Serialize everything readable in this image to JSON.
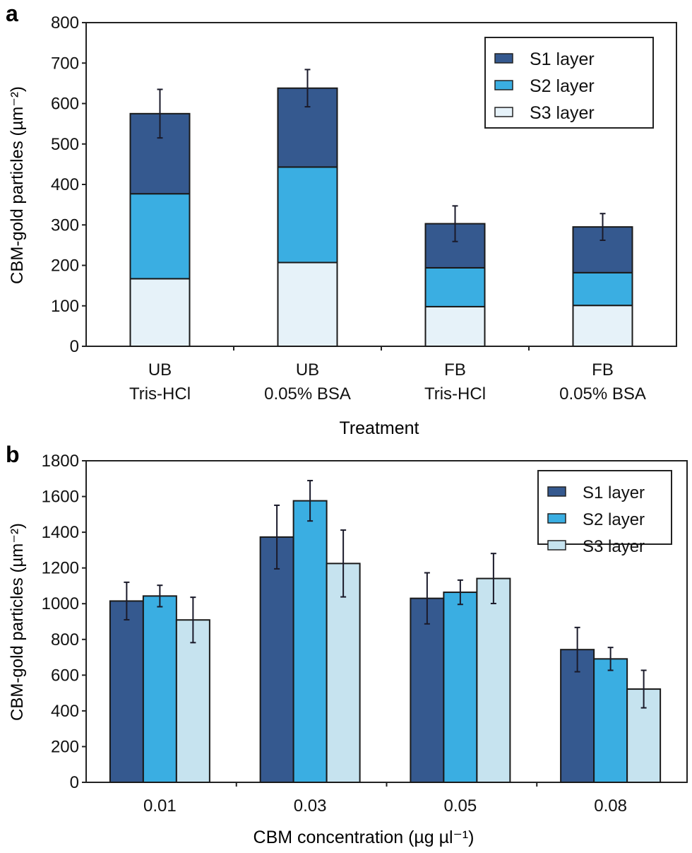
{
  "colors": {
    "S1": "#35598f",
    "S2": "#3aaee2",
    "S3a": "#e6f2f9",
    "S3b": "#c6e3ef"
  },
  "chart_data": [
    {
      "panel_label": "a",
      "type": "bar",
      "stacked": true,
      "ylabel": "CBM-gold particles (µm⁻²)",
      "xlabel": "Treatment",
      "ylim": [
        0,
        800
      ],
      "yticks": [
        "0",
        "100",
        "200",
        "300",
        "400",
        "500",
        "600",
        "700",
        "800"
      ],
      "categories": [
        [
          "UB",
          "Tris-HCl"
        ],
        [
          "UB",
          "0.05% BSA"
        ],
        [
          "FB",
          "Tris-HCl"
        ],
        [
          "FB",
          "0.05% BSA"
        ]
      ],
      "series": [
        {
          "name": "S3 layer",
          "values": [
            167,
            207,
            98,
            101
          ]
        },
        {
          "name": "S2 layer",
          "values": [
            210,
            236,
            96,
            81
          ]
        },
        {
          "name": "S1 layer",
          "values": [
            198,
            195,
            109,
            113
          ]
        }
      ],
      "total_error": [
        60,
        46,
        44,
        33
      ],
      "legend": [
        "S1 layer",
        "S2 layer",
        "S3 layer"
      ],
      "legend_position": "top-right",
      "grid": false
    },
    {
      "panel_label": "b",
      "type": "bar",
      "stacked": false,
      "ylabel": "CBM-gold particles (µm⁻²)",
      "xlabel": "CBM concentration (µg µl⁻¹)",
      "ylim": [
        0,
        1800
      ],
      "yticks": [
        "0",
        "200",
        "400",
        "600",
        "800",
        "1000",
        "1200",
        "1400",
        "1600",
        "1800"
      ],
      "categories": [
        "0.01",
        "0.03",
        "0.05",
        "0.08"
      ],
      "series": [
        {
          "name": "S1 layer",
          "values": [
            1015,
            1373,
            1030,
            743
          ],
          "error": [
            105,
            178,
            143,
            124
          ]
        },
        {
          "name": "S2 layer",
          "values": [
            1043,
            1576,
            1064,
            691
          ],
          "error": [
            60,
            113,
            68,
            64
          ]
        },
        {
          "name": "S3 layer",
          "values": [
            909,
            1225,
            1141,
            522
          ],
          "error": [
            127,
            187,
            140,
            105
          ]
        }
      ],
      "legend": [
        "S1 layer",
        "S2 layer",
        "S3 layer"
      ],
      "legend_position": "top-right",
      "grid": false
    }
  ]
}
